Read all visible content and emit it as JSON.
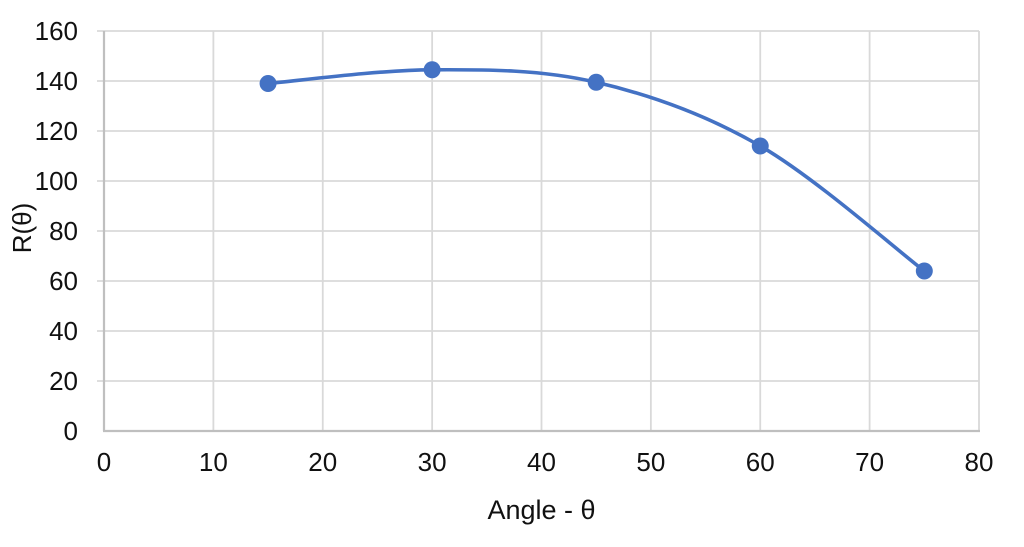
{
  "chart_data": {
    "type": "line",
    "title": "",
    "xlabel": "Angle - θ",
    "ylabel": "R(θ)",
    "series": [
      {
        "name": "R(θ)",
        "x": [
          15,
          30,
          45,
          60,
          75
        ],
        "y": [
          139,
          144.5,
          139.5,
          114,
          64
        ],
        "smooth": true,
        "markers": true
      }
    ],
    "xlim": [
      0,
      80
    ],
    "ylim": [
      0,
      160
    ],
    "x_ticks": [
      0,
      10,
      20,
      30,
      40,
      50,
      60,
      70,
      80
    ],
    "y_ticks": [
      0,
      20,
      40,
      60,
      80,
      100,
      120,
      140,
      160
    ],
    "grid": true,
    "legend": "none",
    "colors": {
      "line": "#4472C4",
      "marker": "#4472C4",
      "gridline": "#D9D9D9",
      "axis_line": "#BFBFBF",
      "text": "#111111",
      "background": "#FFFFFF"
    }
  }
}
